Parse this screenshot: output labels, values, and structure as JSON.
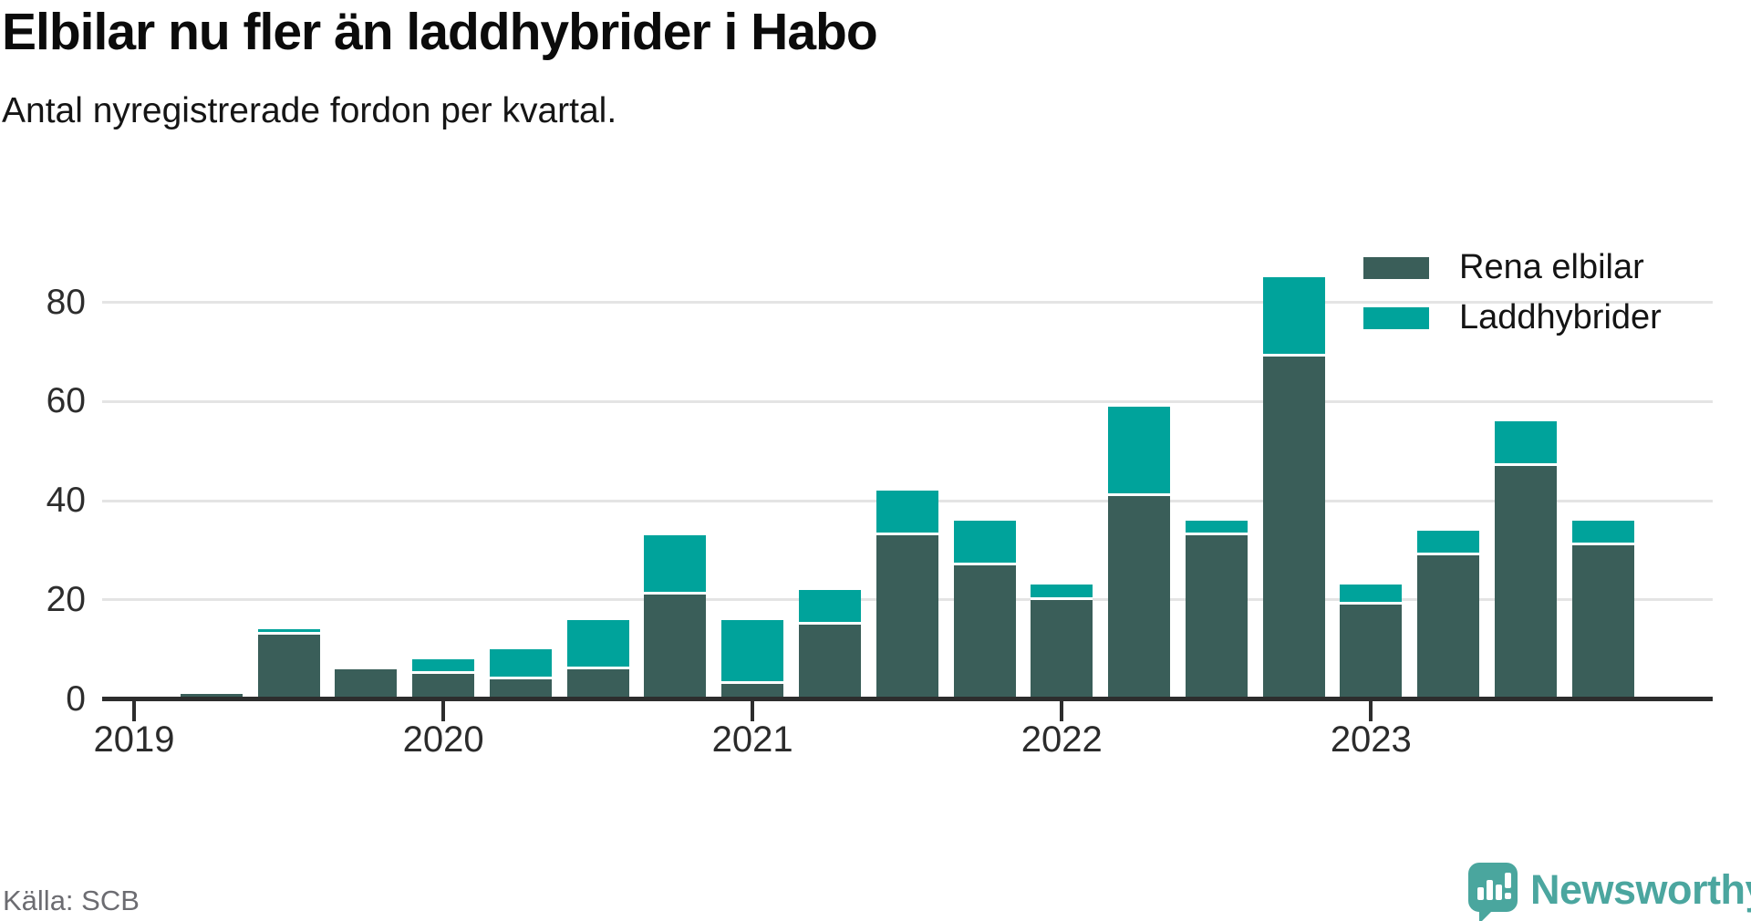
{
  "title": "Elbilar nu fler än laddhybrider i Habo",
  "subtitle": "Antal nyregistrerade fordon per kvartal.",
  "source": "Källa: SCB",
  "branding": {
    "name": "Newsworthy",
    "icon": "speech-bubble-bar-chart-icon",
    "color": "#4aa69e"
  },
  "colors": {
    "elbilar": "#3a5e59",
    "laddhybrider": "#00a39b",
    "axis": "#2d2d2d",
    "grid": "#e4e4e4",
    "background": "#ffffff"
  },
  "legend": [
    {
      "label": "Rena elbilar",
      "color": "#3a5e59"
    },
    {
      "label": "Laddhybrider",
      "color": "#00a39b"
    }
  ],
  "chart_data": {
    "type": "bar",
    "stacked": true,
    "title": "Elbilar nu fler än laddhybrider i Habo",
    "subtitle": "Antal nyregistrerade fordon per kvartal.",
    "categories": [
      "2019 Q1",
      "2019 Q2",
      "2019 Q3",
      "2019 Q4",
      "2020 Q1",
      "2020 Q2",
      "2020 Q3",
      "2020 Q4",
      "2021 Q1",
      "2021 Q2",
      "2021 Q3",
      "2021 Q4",
      "2022 Q1",
      "2022 Q2",
      "2022 Q3",
      "2022 Q4",
      "2023 Q1",
      "2023 Q2",
      "2023 Q3",
      "2023 Q4"
    ],
    "series": [
      {
        "name": "Rena elbilar",
        "color": "#3a5e59",
        "values": [
          0,
          1,
          13,
          6,
          5,
          4,
          6,
          21,
          3,
          15,
          33,
          27,
          20,
          41,
          33,
          69,
          19,
          29,
          47,
          31
        ]
      },
      {
        "name": "Laddhybrider",
        "color": "#00a39b",
        "values": [
          0,
          0,
          1,
          0,
          3,
          6,
          10,
          12,
          13,
          7,
          9,
          9,
          3,
          18,
          3,
          16,
          4,
          5,
          9,
          5
        ]
      }
    ],
    "x_tick_labels": [
      "2019",
      "2020",
      "2021",
      "2022",
      "2023"
    ],
    "x_tick_quarter_index": [
      0,
      4,
      8,
      12,
      16
    ],
    "y_ticks": [
      0,
      20,
      40,
      60,
      80
    ],
    "ylim": [
      0,
      90
    ],
    "xlabel": "",
    "ylabel": "",
    "grid": "horizontal",
    "legend_position": "top-right"
  }
}
